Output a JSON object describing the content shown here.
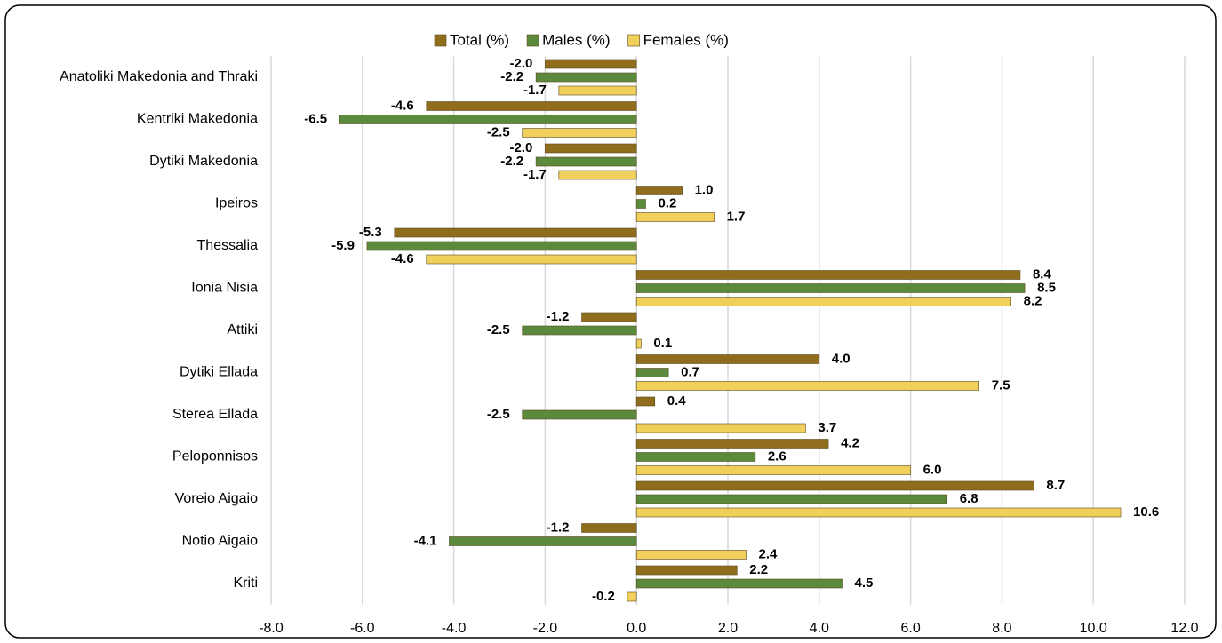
{
  "chart_data": {
    "type": "hbar",
    "categories": [
      "Anatoliki Makedonia and Thraki",
      "Kentriki Makedonia",
      "Dytiki Makedonia",
      "Ipeiros",
      "Thessalia",
      "Ionia Nisia",
      "Attiki",
      "Dytiki Ellada",
      "Sterea Ellada",
      "Peloponnisos",
      "Voreio Aigaio",
      "Notio Aigaio",
      "Kriti"
    ],
    "series": [
      {
        "name": "Total (%)",
        "color": "#8f6d1c",
        "values": [
          -2.0,
          -4.6,
          -2.0,
          1.0,
          -5.3,
          8.4,
          -1.2,
          4.0,
          0.4,
          4.2,
          8.7,
          -1.2,
          2.2
        ],
        "value_labels": [
          "-2.0",
          "-4.6",
          "-2.0",
          "1.0",
          "-5.3",
          "8.4",
          "-1.2",
          "4.0",
          "0.4",
          "4.2",
          "8.7",
          "-1.2",
          "2.2"
        ]
      },
      {
        "name": "Males (%)",
        "color": "#5c8a3c",
        "values": [
          -2.2,
          -6.5,
          -2.2,
          0.2,
          -5.9,
          8.5,
          -2.5,
          0.7,
          -2.5,
          2.6,
          6.8,
          -4.1,
          4.5
        ],
        "value_labels": [
          "-2.2",
          "-6.5",
          "-2.2",
          "0.2",
          "-5.9",
          "8.5",
          "-2.5",
          "0.7",
          "-2.5",
          "2.6",
          "6.8",
          "-4.1",
          "4.5"
        ]
      },
      {
        "name": "Females (%)",
        "color": "#f0cf5a",
        "values": [
          -1.7,
          -2.5,
          -1.7,
          1.7,
          -4.6,
          8.2,
          0.1,
          7.5,
          3.7,
          6.0,
          10.6,
          2.4,
          -0.2
        ],
        "value_labels": [
          "-1.7",
          "-2.5",
          "-1.7",
          "1.7",
          "-4.6",
          "8.2",
          "0.1",
          "7.5",
          "3.7",
          "6.0",
          "10.6",
          "2.4",
          "-0.2"
        ]
      }
    ],
    "xlim": [
      -8,
      12
    ],
    "xticks": [
      {
        "value": -8,
        "label": "-8.0"
      },
      {
        "value": -6,
        "label": "-6.0"
      },
      {
        "value": -4,
        "label": "-4.0"
      },
      {
        "value": -2,
        "label": "-2.0"
      },
      {
        "value": 0,
        "label": "0.0"
      },
      {
        "value": 2,
        "label": "2.0"
      },
      {
        "value": 4,
        "label": "4.0"
      },
      {
        "value": 6,
        "label": "6.0"
      },
      {
        "value": 8,
        "label": "8.0"
      },
      {
        "value": 10,
        "label": "10.0"
      },
      {
        "value": 12,
        "label": "12.0"
      }
    ],
    "grid": true,
    "legend": "top"
  }
}
